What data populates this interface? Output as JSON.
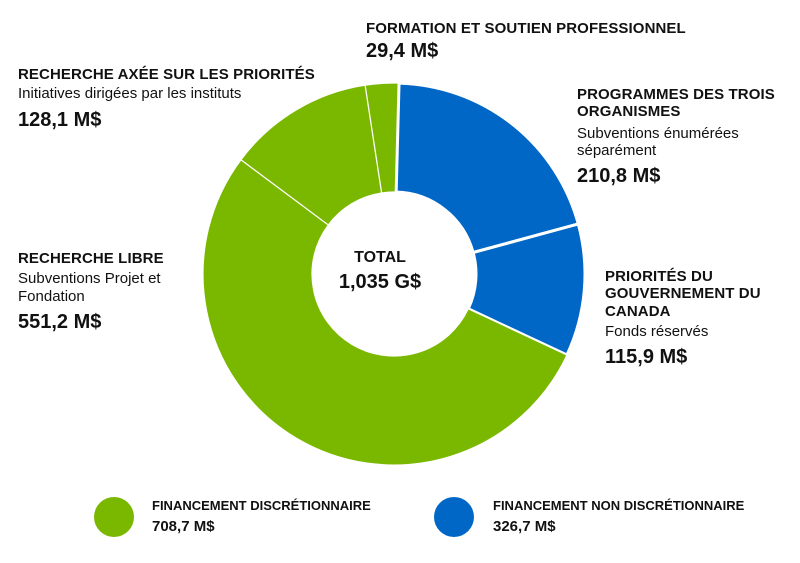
{
  "chart_data": {
    "type": "pie",
    "total_label": "TOTAL",
    "total_value": "1,035 G$",
    "slices": [
      {
        "heading": "FORMATION ET SOUTIEN PROFESSIONNEL",
        "subtitle": "",
        "value_label": "29,4 M$",
        "value": 29.4,
        "group": "discretionary"
      },
      {
        "heading": "PROGRAMMES DES TROIS ORGANISMES",
        "subtitle": "Subventions énumérées séparément",
        "value_label": "210,8 M$",
        "value": 210.8,
        "group": "non_discretionary"
      },
      {
        "heading": "PRIORITÉS DU GOUVERNEMENT DU CANADA",
        "subtitle": "Fonds réservés",
        "value_label": "115,9 M$",
        "value": 115.9,
        "group": "non_discretionary"
      },
      {
        "heading": "RECHERCHE LIBRE",
        "subtitle": "Subventions Projet et Fondation",
        "value_label": "551,2 M$",
        "value": 551.2,
        "group": "discretionary"
      },
      {
        "heading": "RECHERCHE AXÉE SUR LES PRIORITÉS",
        "subtitle": "Initiatives dirigées par les instituts",
        "value_label": "128,1 M$",
        "value": 128.1,
        "group": "discretionary"
      }
    ],
    "legend": [
      {
        "label": "FINANCEMENT DISCRÉTIONNAIRE",
        "value_label": "708,7 M$",
        "value": 708.7,
        "color": "#7ab800"
      },
      {
        "label": "FINANCEMENT NON DISCRÉTIONNAIRE",
        "value_label": "326,7 M$",
        "value": 326.7,
        "color": "#0067c6"
      }
    ],
    "colors": {
      "discretionary": "#7ab800",
      "non_discretionary": "#0067c6",
      "separator": "#ffffff"
    }
  }
}
